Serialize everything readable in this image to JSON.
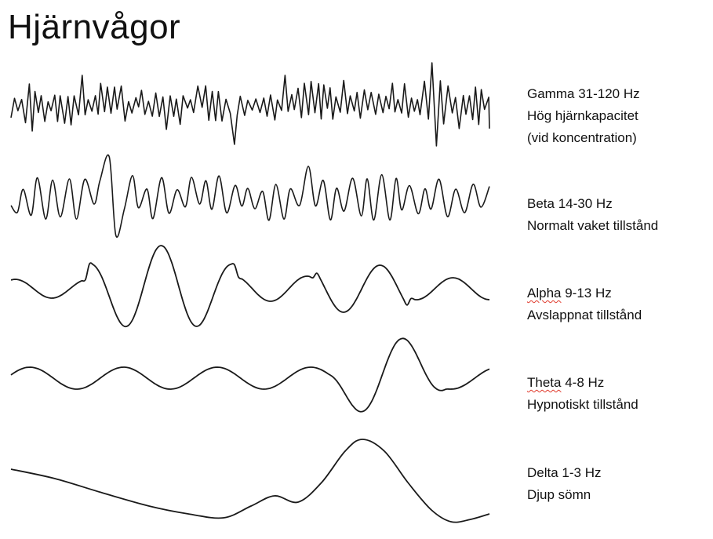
{
  "title": "Hjärnvågor",
  "waves": [
    {
      "name": "Gamma",
      "range": "31-120 Hz",
      "description_lines": [
        "Hög hjärnkapacitet",
        "(vid koncentration)"
      ]
    },
    {
      "name": "Beta",
      "range": "14-30 Hz",
      "description_lines": [
        "Normalt vaket tillstånd"
      ]
    },
    {
      "name": "Alpha",
      "range": "9-13 Hz",
      "description_lines": [
        "Avslappnat tillstånd"
      ]
    },
    {
      "name": "Theta",
      "range": "4-8 Hz",
      "description_lines": [
        "Hypnotiskt tillstånd"
      ]
    },
    {
      "name": "Delta",
      "range": "1-3 Hz",
      "description_lines": [
        "Djup sömn"
      ]
    }
  ],
  "colors": {
    "wave_stroke": "#1a1a1a",
    "spellcheck_underline": "#e0392b"
  }
}
